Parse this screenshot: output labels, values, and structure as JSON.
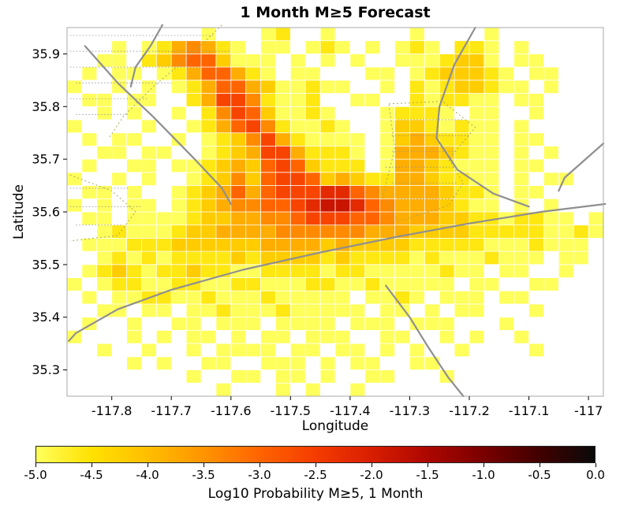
{
  "chart_data": {
    "type": "heatmap",
    "title": "1 Month M≥5 Forecast",
    "xlabel": "Longitude",
    "ylabel": "Latitude",
    "lon_range": [
      -117.875,
      -116.975
    ],
    "lat_range": [
      35.25,
      35.95
    ],
    "cell_size_deg": 0.025,
    "grid": "on? no - white background, no gridlines",
    "x_ticks": [
      {
        "v": -117.8,
        "label": "-117.8"
      },
      {
        "v": -117.7,
        "label": "-117.7"
      },
      {
        "v": -117.6,
        "label": "-117.6"
      },
      {
        "v": -117.5,
        "label": "-117.5"
      },
      {
        "v": -117.4,
        "label": "-117.4"
      },
      {
        "v": -117.3,
        "label": "-117.3"
      },
      {
        "v": -117.2,
        "label": "-117.2"
      },
      {
        "v": -117.1,
        "label": "-117.1"
      },
      {
        "v": -117.0,
        "label": "-117"
      }
    ],
    "y_ticks": [
      {
        "v": 35.9,
        "label": "35.9"
      },
      {
        "v": 35.8,
        "label": "35.8"
      },
      {
        "v": 35.7,
        "label": "35.7"
      },
      {
        "v": 35.6,
        "label": "35.6"
      },
      {
        "v": 35.5,
        "label": "35.5"
      },
      {
        "v": 35.4,
        "label": "35.4"
      },
      {
        "v": 35.3,
        "label": "35.3"
      }
    ],
    "value_key": {
      "1": -5.0,
      "2": -4.6,
      "3": -4.2,
      "4": -3.8,
      "5": -3.4,
      "6": -3.0,
      "7": -2.6,
      "8": -2.2,
      "9": -1.8
    },
    "grid_rows_top_to_bottom": [
      [
        "......",
        "...1..",
        ".12..1",
        ".....1",
        "....1.",
        "......"
      ],
      [
        "...1.1",
        "245421",
        ".11.12",
        "1.1.12",
        "1.221.",
        "1....."
      ],
      [
        "..11.2",
        "356631",
        "11.1.1",
        ".1..11",
        "12331.",
        "11...."
      ],
      [
        ".1.11.",
        "124664",
        "21.11.",
        "..11.1",
        "233321",
        ".11..."
      ],
      [
        "1..1.1",
        ".12466",
        "431121",
        "1..1.2",
        "123321",
        "1.1..."
      ],
      [
        ".11.11",
        "..2477",
        "52112.",
        ".11..2",
        "12211.",
        "11...."
      ],
      [
        "..1.1.",
        ".1.257",
        "631121",
        "...122",
        "21.11.",
        ".1...."
      ],
      [
        "1....1",
        "..1246",
        "752112",
        "1..133",
        "21211.",
        "1....."
      ],
      [
        ".1.11.",
        ".1.123",
        "574211",
        "11.134",
        "32211.",
        "11...."
      ],
      [
        "..11.1",
        "1..123",
        "477422",
        "21.144",
        "43211.",
        "1.1..."
      ],
      [
        ".1..11",
        ".11234",
        "367632",
        "22.144",
        "32111.",
        "11...."
      ],
      [
        "1..1.1",
        "..1235",
        "367763",
        "432244",
        "32211.",
        "1.11.."
      ],
      [
        ".11.1.",
        ".12346",
        "467778",
        "865444",
        "43221.",
        "11...."
      ],
      [
        "1.1.11",
        ".12345",
        "566789",
        "986544",
        "43211.",
        "1.1..."
      ],
      [
        ".11.11",
        "112334",
        "455677",
        "766544",
        "433221",
        "2211.1"
      ],
      [
        "..1211",
        "123344",
        "445555",
        "554443",
        "333222",
        "221121"
      ],
      [
        ".11122",
        "233333",
        "344443",
        "433332",
        "222211",
        "12111."
      ],
      [
        "..1212",
        "122223",
        "233332",
        "322221",
        "211121",
        "11.11."
      ],
      [
        ".12321",
        "223221",
        "122221",
        "221111",
        "1211.1",
        "1..1.."
      ],
      [
        "1.1221",
        "122112",
        "211122",
        "112111",
        "11.11.",
        ".11..."
      ],
      [
        ".1.112",
        "211211",
        "121111",
        "1.1121",
        ".111.1",
        "1....."
      ],
      [
        "..11.1",
        "1.1121",
        "112111",
        "11.11.",
        "1.11..",
        ".1...."
      ],
      [
        ".1..1.",
        ".11.11",
        "1.1111",
        ".111.1",
        "11...1",
        "......"
      ],
      [
        "1...1.",
        "1.11.1",
        ".11.11",
        "1..11.",
        ".1.1..",
        "1....."
      ],
      [
        "..1..1",
        "..1.11",
        "11.11.",
        "11.1.1",
        "..1...",
        ".1...."
      ],
      [
        "....1.",
        "1..11.",
        ".111.1",
        ".11..1",
        "1.....",
        "......"
      ],
      [
        "......",
        "..1..1",
        "1.11.1",
        "..11..",
        ".1....",
        "......"
      ],
      [
        "......",
        "....1.",
        "..1.1.",
        ".1....",
        "......",
        "......"
      ]
    ],
    "colorbar": {
      "label": "Log10 Probability M≥5, 1 Month",
      "ticks": [
        {
          "v": -5.0,
          "label": "-5.0"
        },
        {
          "v": -4.5,
          "label": "-4.5"
        },
        {
          "v": -4.0,
          "label": "-4.0"
        },
        {
          "v": -3.5,
          "label": "-3.5"
        },
        {
          "v": -3.0,
          "label": "-3.0"
        },
        {
          "v": -2.5,
          "label": "-2.5"
        },
        {
          "v": -2.0,
          "label": "-2.0"
        },
        {
          "v": -1.5,
          "label": "-1.5"
        },
        {
          "v": -1.0,
          "label": "-1.0"
        },
        {
          "v": -0.5,
          "label": "-0.5"
        },
        {
          "v": 0.0,
          "label": "0.0"
        }
      ],
      "stops": [
        {
          "value": -5.0,
          "color": "#FFFF5C"
        },
        {
          "value": -4.5,
          "color": "#FFE100"
        },
        {
          "value": -4.0,
          "color": "#FFBE00"
        },
        {
          "value": -3.5,
          "color": "#FF9400"
        },
        {
          "value": -3.0,
          "color": "#FF6400"
        },
        {
          "value": -2.5,
          "color": "#F53C00"
        },
        {
          "value": -2.0,
          "color": "#D81E00"
        },
        {
          "value": -1.5,
          "color": "#AD0700"
        },
        {
          "value": -1.0,
          "color": "#7A0000"
        },
        {
          "value": -0.5,
          "color": "#420000"
        },
        {
          "value": 0.0,
          "color": "#0A0A0A"
        }
      ]
    },
    "fault_lines": [
      [
        [
          -117.715,
          35.955
        ],
        [
          -117.735,
          35.915
        ],
        [
          -117.76,
          35.875
        ],
        [
          -117.768,
          35.838
        ]
      ],
      [
        [
          -117.845,
          35.915
        ],
        [
          -117.79,
          35.845
        ],
        [
          -117.73,
          35.78
        ],
        [
          -117.665,
          35.705
        ],
        [
          -117.615,
          35.645
        ],
        [
          -117.6,
          35.615
        ]
      ],
      [
        [
          -116.972,
          35.615
        ],
        [
          -117.08,
          35.6
        ],
        [
          -117.2,
          35.578
        ],
        [
          -117.32,
          35.553
        ],
        [
          -117.45,
          35.523
        ],
        [
          -117.58,
          35.49
        ],
        [
          -117.7,
          35.452
        ],
        [
          -117.79,
          35.415
        ],
        [
          -117.86,
          35.37
        ],
        [
          -117.872,
          35.355
        ]
      ],
      [
        [
          -117.19,
          35.95
        ],
        [
          -117.225,
          35.88
        ],
        [
          -117.25,
          35.8
        ],
        [
          -117.255,
          35.74
        ],
        [
          -117.22,
          35.68
        ],
        [
          -117.16,
          35.635
        ],
        [
          -117.1,
          35.61
        ]
      ],
      [
        [
          -117.34,
          35.46
        ],
        [
          -117.3,
          35.4
        ],
        [
          -117.27,
          35.345
        ],
        [
          -117.235,
          35.285
        ],
        [
          -117.21,
          35.25
        ]
      ],
      [
        [
          -116.975,
          35.73
        ],
        [
          -117.01,
          35.695
        ],
        [
          -117.04,
          35.665
        ],
        [
          -117.05,
          35.64
        ]
      ]
    ],
    "region_outlines": [
      [
        [
          -117.335,
          35.805
        ],
        [
          -117.245,
          35.81
        ],
        [
          -117.19,
          35.76
        ],
        [
          -117.235,
          35.7
        ],
        [
          -117.21,
          35.655
        ],
        [
          -117.235,
          35.612
        ],
        [
          -117.32,
          35.582
        ],
        [
          -117.345,
          35.63
        ],
        [
          -117.325,
          35.72
        ],
        [
          -117.335,
          35.805
        ]
      ],
      [
        [
          -117.615,
          35.955
        ],
        [
          -117.67,
          35.895
        ],
        [
          -117.73,
          35.838
        ],
        [
          -117.78,
          35.782
        ],
        [
          -117.805,
          35.74
        ]
      ],
      [
        [
          -117.87,
          35.67
        ],
        [
          -117.8,
          35.64
        ],
        [
          -117.76,
          35.6
        ],
        [
          -117.79,
          35.555
        ],
        [
          -117.87,
          35.545
        ]
      ]
    ],
    "hatch_lines": [
      [
        [
          -117.87,
          35.935
        ],
        [
          -117.63,
          35.935
        ]
      ],
      [
        [
          -117.87,
          35.905
        ],
        [
          -117.6,
          35.905
        ]
      ],
      [
        [
          -117.87,
          35.875
        ],
        [
          -117.65,
          35.875
        ]
      ],
      [
        [
          -117.86,
          35.845
        ],
        [
          -117.7,
          35.845
        ]
      ],
      [
        [
          -117.87,
          35.815
        ],
        [
          -117.74,
          35.815
        ]
      ],
      [
        [
          -117.86,
          35.785
        ],
        [
          -117.77,
          35.785
        ]
      ],
      [
        [
          -117.87,
          35.645
        ],
        [
          -117.77,
          35.645
        ]
      ],
      [
        [
          -117.87,
          35.61
        ],
        [
          -117.75,
          35.61
        ]
      ],
      [
        [
          -117.86,
          35.575
        ],
        [
          -117.78,
          35.575
        ]
      ],
      [
        [
          -117.32,
          35.775
        ],
        [
          -117.21,
          35.775
        ]
      ],
      [
        [
          -117.33,
          35.745
        ],
        [
          -117.2,
          35.745
        ]
      ],
      [
        [
          -117.33,
          35.715
        ],
        [
          -117.22,
          35.715
        ]
      ],
      [
        [
          -117.34,
          35.685
        ],
        [
          -117.22,
          35.685
        ]
      ],
      [
        [
          -117.33,
          35.655
        ],
        [
          -117.22,
          35.655
        ]
      ],
      [
        [
          -117.32,
          35.625
        ],
        [
          -117.23,
          35.625
        ]
      ]
    ],
    "legend_position": "colorbar-bottom"
  },
  "colors": {
    "fault_line": "#8f8f8f",
    "hatch_line": "#8f8f8f",
    "region_outline": "#a8a858",
    "plot_border": "#a8a8a8",
    "axis_text": "#000000",
    "background": "#ffffff"
  }
}
